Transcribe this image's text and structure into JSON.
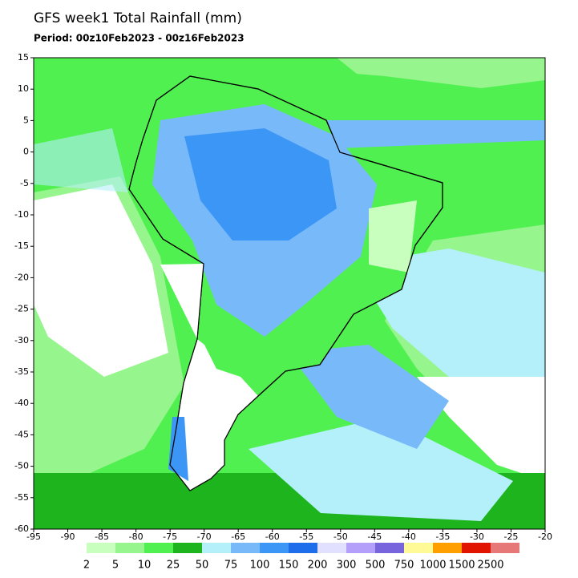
{
  "title": "GFS week1 Total Rainfall (mm)",
  "subtitle": "Period: 00z10Feb2023 - 00z16Feb2023",
  "map": {
    "xlim": [
      -95,
      -20
    ],
    "ylim": [
      -60,
      15
    ],
    "xticks": [
      -95,
      -90,
      -85,
      -80,
      -75,
      -70,
      -65,
      -60,
      -55,
      -50,
      -45,
      -40,
      -35,
      -30,
      -25,
      -20
    ],
    "yticks": [
      15,
      10,
      5,
      0,
      -5,
      -10,
      -15,
      -20,
      -25,
      -30,
      -35,
      -40,
      -45,
      -50,
      -55,
      -60
    ]
  },
  "colorbar": {
    "levels": [
      2,
      5,
      10,
      25,
      50,
      75,
      100,
      150,
      200,
      300,
      500,
      750,
      1000,
      1500,
      2500
    ],
    "colors": [
      "#c8ffbe",
      "#96f58c",
      "#50f050",
      "#1eb41e",
      "#b4f0fa",
      "#78b9fa",
      "#3c96f5",
      "#1e6eeb",
      "#e1e1ff",
      "#b4a0fa",
      "#7864dc",
      "#fffa96",
      "#ffa000",
      "#e11400",
      "#e67878"
    ]
  }
}
